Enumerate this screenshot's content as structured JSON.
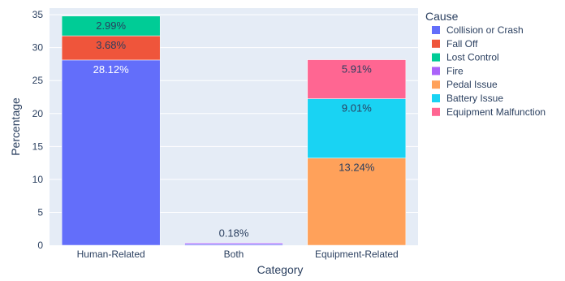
{
  "chart_data": {
    "type": "bar",
    "stacked": true,
    "xlabel": "Category",
    "ylabel": "Percentage",
    "categories": [
      "Human-Related",
      "Both",
      "Equipment-Related"
    ],
    "ylim": [
      0,
      36
    ],
    "yticks": [
      0,
      5,
      10,
      15,
      20,
      25,
      30,
      35
    ],
    "legend": {
      "title": "Cause",
      "placement": "right"
    },
    "series": [
      {
        "name": "Collision or Crash",
        "color": "#636efa",
        "values": [
          28.12,
          0.18,
          0
        ],
        "labels": [
          "28.12%",
          "0.18%",
          ""
        ]
      },
      {
        "name": "Fall Off",
        "color": "#ef553b",
        "values": [
          3.68,
          0,
          0
        ],
        "labels": [
          "3.68%",
          "",
          ""
        ]
      },
      {
        "name": "Lost Control",
        "color": "#00cc96",
        "values": [
          2.99,
          0,
          0
        ],
        "labels": [
          "2.99%",
          "",
          ""
        ]
      },
      {
        "name": "Fire",
        "color": "#ab63fa",
        "values": [
          0,
          0.18,
          0
        ],
        "labels": [
          "",
          "",
          ""
        ]
      },
      {
        "name": "Pedal Issue",
        "color": "#ffa15a",
        "values": [
          0,
          0,
          13.24
        ],
        "labels": [
          "",
          "",
          "13.24%"
        ]
      },
      {
        "name": "Battery Issue",
        "color": "#19d3f3",
        "values": [
          0,
          0,
          9.01
        ],
        "labels": [
          "",
          "",
          "9.01%"
        ]
      },
      {
        "name": "Equipment Malfunction",
        "color": "#ff6692",
        "values": [
          0,
          0,
          5.91
        ],
        "labels": [
          "",
          "",
          "5.91%"
        ]
      }
    ]
  }
}
